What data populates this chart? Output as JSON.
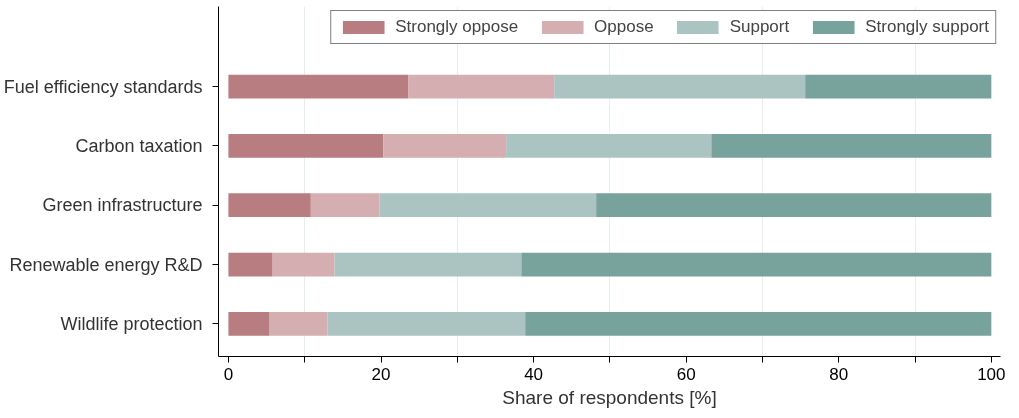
{
  "chart_data": {
    "type": "bar",
    "orientation": "horizontal",
    "stacked": true,
    "categories": [
      "Fuel efficiency standards",
      "Carbon taxation",
      "Green infrastructure",
      "Renewable energy R&D",
      "Wildlife protection"
    ],
    "series": [
      {
        "name": "Strongly oppose",
        "color": "#b77d80",
        "values": [
          23.6,
          20.3,
          10.8,
          5.8,
          5.4
        ]
      },
      {
        "name": "Oppose",
        "color": "#d4aeb1",
        "values": [
          19.1,
          16.1,
          9.0,
          8.1,
          7.6
        ]
      },
      {
        "name": "Support",
        "color": "#abc4c1",
        "values": [
          32.9,
          26.9,
          28.4,
          24.5,
          25.9
        ]
      },
      {
        "name": "Strongly support",
        "color": "#78a29c",
        "values": [
          24.4,
          36.7,
          51.8,
          61.6,
          61.1
        ]
      }
    ],
    "xlabel": "Share of respondents [%]",
    "xlim": [
      -1.3,
      101.2
    ],
    "xticks": [
      0,
      {
        "value": 10,
        "label": null
      },
      20,
      {
        "value": 30,
        "label": null
      },
      40,
      {
        "value": 50,
        "label": null
      },
      60,
      {
        "value": 70,
        "label": null
      },
      80,
      {
        "value": 90,
        "label": null
      },
      100
    ],
    "grid": "x",
    "legend": "top"
  }
}
